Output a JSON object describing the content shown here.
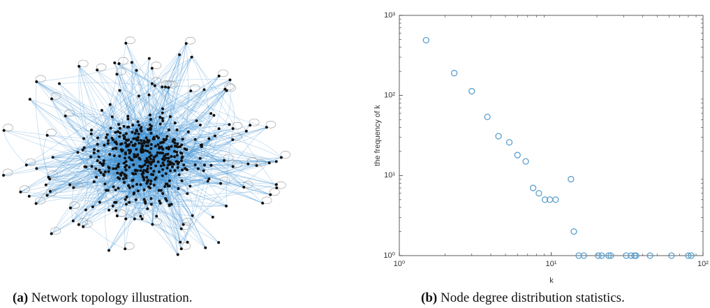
{
  "panel_a": {
    "label": "(a)",
    "caption": "Network topology illustration."
  },
  "chart_data": {
    "type": "scatter",
    "caption_label": "(b)",
    "caption": "Node degree distribution statistics.",
    "xlabel": "k",
    "ylabel": "the frequency of k",
    "log_x": true,
    "log_y": true,
    "color": "#5b9fcf",
    "xlim": [
      1,
      100
    ],
    "ylim": [
      1,
      1000
    ],
    "xticks": [
      {
        "value": 1,
        "label": "10⁰"
      },
      {
        "value": 10,
        "label": "10¹"
      },
      {
        "value": 100,
        "label": "10²"
      }
    ],
    "yticks": [
      {
        "value": 1,
        "label": "10⁰"
      },
      {
        "value": 10,
        "label": "10¹"
      },
      {
        "value": 100,
        "label": "10²"
      },
      {
        "value": 1000,
        "label": "10³"
      }
    ],
    "x": [
      1.5,
      2.3,
      3.0,
      3.8,
      4.5,
      5.3,
      6.0,
      6.8,
      7.6,
      8.3,
      9.1,
      9.8,
      10.7,
      13.5,
      14.1,
      15.2,
      16.4,
      20.4,
      21.5,
      23.9,
      24.7,
      31.2,
      33.6,
      35.4,
      36.2,
      44.8,
      62,
      80,
      83.6
    ],
    "values": [
      490,
      190,
      113,
      54,
      31,
      26,
      18,
      15,
      7,
      6,
      5,
      5,
      5,
      9,
      2,
      1,
      1,
      1,
      1,
      1,
      1,
      1,
      1,
      1,
      1,
      1,
      1,
      1,
      1
    ]
  }
}
